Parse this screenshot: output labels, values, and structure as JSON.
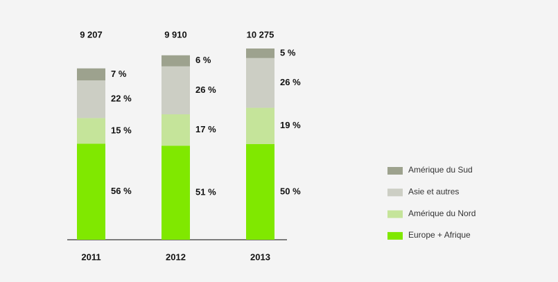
{
  "chart_data": {
    "type": "stacked_bar",
    "categories": [
      "2011",
      "2012",
      "2013"
    ],
    "totals": [
      {
        "value": 9207,
        "label": "9 207"
      },
      {
        "value": 9910,
        "label": "9 910"
      },
      {
        "value": 10275,
        "label": "10 275"
      }
    ],
    "series": [
      {
        "name": "Europe + Afrique",
        "color": "#80e800",
        "values": [
          56,
          51,
          50
        ],
        "value_labels": [
          "56 %",
          "51 %",
          "50 %"
        ]
      },
      {
        "name": "Amérique du Nord",
        "color": "#c5e49a",
        "values": [
          15,
          17,
          19
        ],
        "value_labels": [
          "15 %",
          "17 %",
          "19 %"
        ]
      },
      {
        "name": "Asie et autres",
        "color": "#cccec4",
        "values": [
          22,
          26,
          26
        ],
        "value_labels": [
          "22 %",
          "26 %",
          "26 %"
        ]
      },
      {
        "name": "Amérique du Sud",
        "color": "#9da28e",
        "values": [
          7,
          6,
          5
        ],
        "value_labels": [
          "7 %",
          "6 %",
          "5 %"
        ]
      }
    ]
  }
}
